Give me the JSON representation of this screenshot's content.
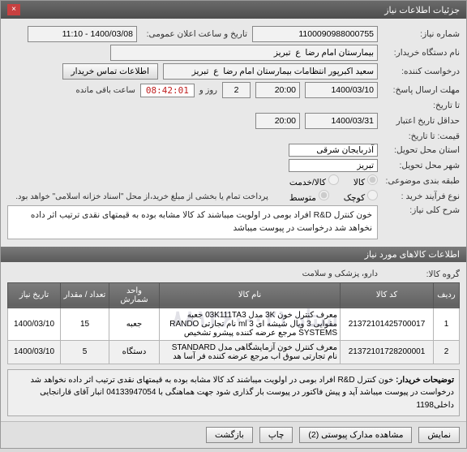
{
  "window": {
    "title": "جزئیات اطلاعات نیاز"
  },
  "header": {
    "need_no_label": "شماره نیاز:",
    "need_no": "1100090988000755",
    "announce_label": "تاریخ و ساعت اعلان عمومی:",
    "announce_value": "1400/03/08 - 11:10",
    "org_label": "نام دستگاه خریدار:",
    "org_value": "بیمارستان امام رضا  ع  تبریز",
    "requester_label": "درخواست کننده:",
    "requester_value": "سعید اکبرپور انتظامات بیمارستان امام رضا  ع  تبریز",
    "contact_btn": "اطلاعات تماس خریدار",
    "deadline_label": "مهلت ارسال پاسخ:",
    "deadline_to_label": "تا تاریخ:",
    "deadline_date": "1400/03/10",
    "deadline_time": "20:00",
    "day_box": "2",
    "day_word": "روز و",
    "countdown": "08:42:01",
    "remaining": "ساعت باقی مانده",
    "validity_label": "حداقل تاریخ اعتبار",
    "validity_sub": "قیمت: تا تاریخ:",
    "validity_date": "1400/03/31",
    "validity_time": "20:00",
    "province_label": "استان محل تحویل:",
    "province_value": "آذربایجان شرقی",
    "city_label": "شهر محل تحویل:",
    "city_value": "تبریز",
    "pkg_label": "طبقه بندی موضوعی:",
    "pkg_kala": "کالا",
    "pkg_khadamat": "کالا/خدمت",
    "buy_label": "نوع فرآیند خرید :",
    "buy_kochak": "کوچک",
    "buy_motavaset": "متوسط",
    "pay_note": "پرداخت تمام یا بخشی از مبلغ خرید،از محل \"اسناد خزانه اسلامی\" خواهد بود.",
    "overview_label": "شرح کلی نیاز:",
    "overview_text": "خون کنترل R&D افراد بومی در اولویت میباشند کد کالا مشابه بوده به قیمتهای نقدی ترتیب اثر داده نخواهد شد درخواست در پیوست میباشد"
  },
  "items_section": {
    "title": "اطلاعات کالاهای مورد نیاز",
    "group_label": "گروه کالا:",
    "group_value": "دارو، پزشکی و سلامت"
  },
  "table": {
    "cols": [
      "ردیف",
      "کد کالا",
      "نام کالا",
      "واحد شمارش",
      "تعداد / مقدار",
      "تاریخ نیاز"
    ],
    "rows": [
      {
        "n": "1",
        "code": "21372101425700017",
        "name": "معرف کنترل خون 3K مدل 03K111TA3 جعبه مقوایی 3 ویال شیشه ای 3 ml نام تجارتی RANDO SYSTEMS مرجع عرضه کننده پیشرو تشخیص",
        "unit": "جعبه",
        "qty": "15",
        "date": "1400/03/10"
      },
      {
        "n": "2",
        "code": "21372101728200001",
        "name": "معرف کنترل خون آزمایشگاهی مدل STANDARD نام تجارتی سوق اب مرجع عرضه کننده فر آسا هد",
        "unit": "دستگاه",
        "qty": "5",
        "date": "1400/03/10"
      }
    ],
    "watermark": "ستاد\n۰۲۱-۸۸۱۲۶۰"
  },
  "footer": {
    "desc_label": "توضیحات خریدار:",
    "desc_text": "خون کنترل R&D افراد بومی در اولویت میباشند کد کالا مشابه بوده به قیمتهای نقدی ترتیب اثر داده نخواهد شد درخواست در پیوست میباشد آپد و پیش فاکتور در پیوست بار گذاری شود جهت هماهنگی با 04133947054 انبار آقای قارانجایی داخلی1198"
  },
  "buttons": {
    "view": "نمایش",
    "attach": "مشاهده مدارک پیوستی (2)",
    "print": "چاپ",
    "back": "بازگشت"
  },
  "colors": {
    "titlebar": "#5a5a5a",
    "accent": "#6a6a6a",
    "danger": "#c02020"
  }
}
